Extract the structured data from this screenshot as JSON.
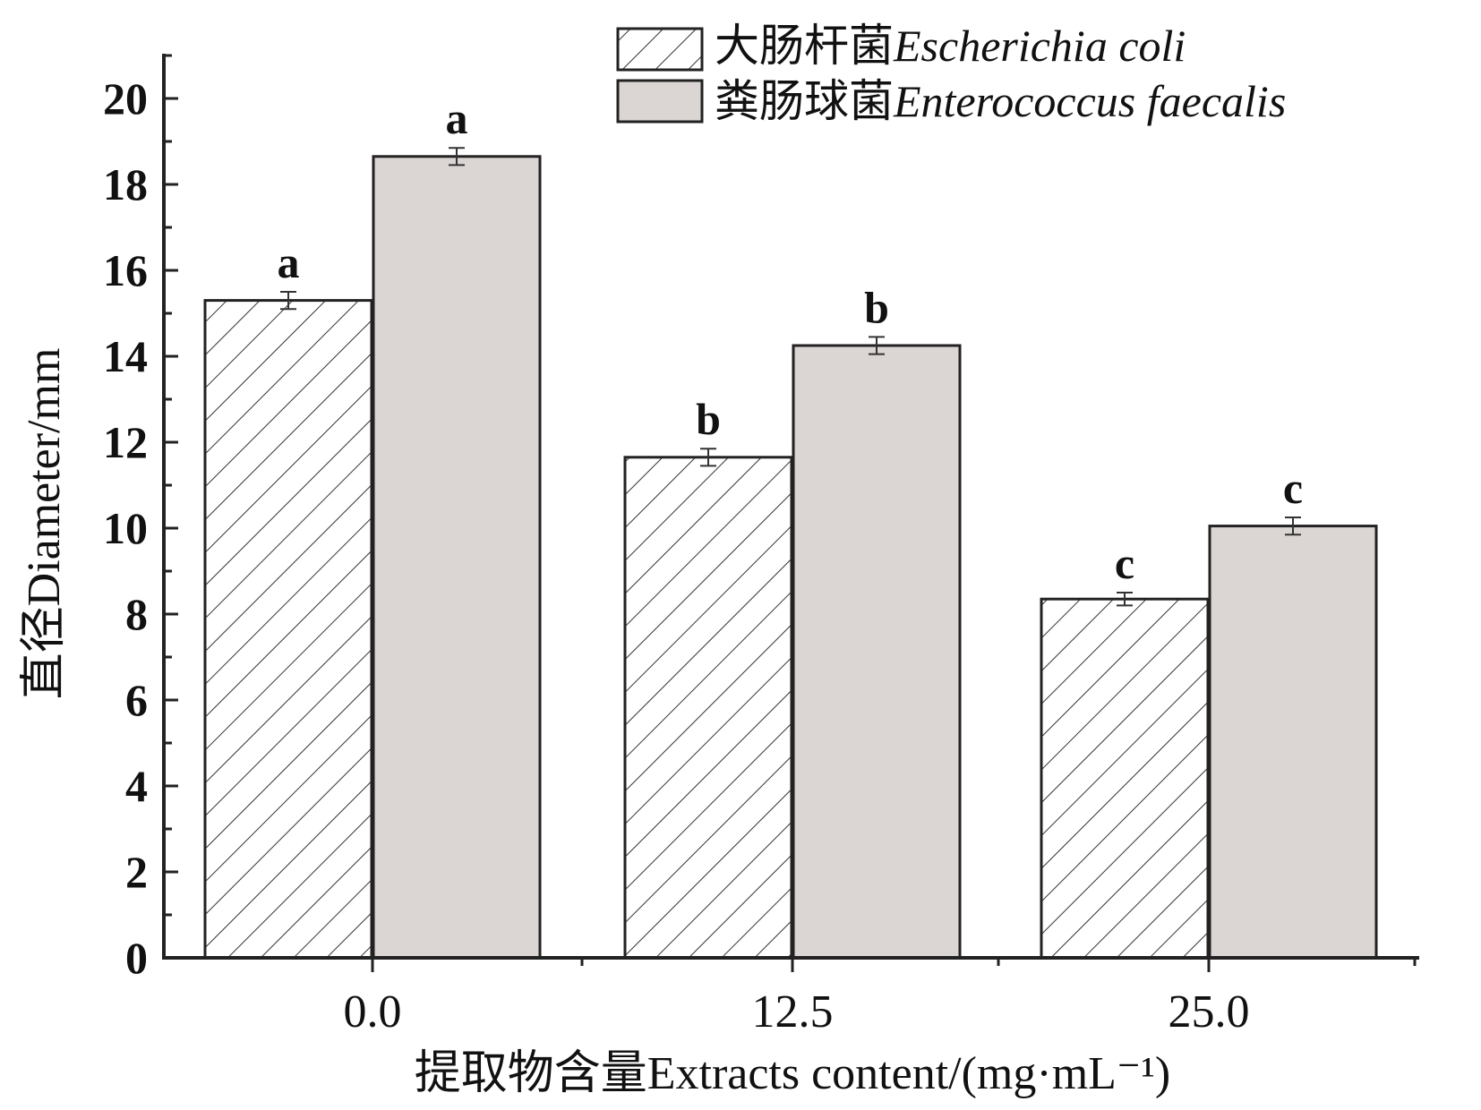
{
  "chart_data": {
    "type": "bar",
    "xlabel": "提取物含量Extracts content/(mg·mL⁻¹)",
    "ylabel": "直径Diameter/mm",
    "categories": [
      "0.0",
      "12.5",
      "25.0"
    ],
    "ylim": [
      0,
      21
    ],
    "yticks": [
      0,
      2,
      4,
      6,
      8,
      10,
      12,
      14,
      16,
      18,
      20
    ],
    "grid": false,
    "legend_position": "top-right",
    "series": [
      {
        "name": "大肠杆菌Escherichia coli",
        "name_cn": "大肠杆菌",
        "name_latin": "Escherichia coli",
        "fill": "hatched",
        "color": "#ffffff",
        "values": [
          15.3,
          11.65,
          8.35
        ],
        "errors": [
          0.2,
          0.2,
          0.15
        ],
        "labels": [
          "a",
          "b",
          "c"
        ]
      },
      {
        "name": "粪肠球菌Enterococcus faecalis",
        "name_cn": "粪肠球菌",
        "name_latin": "Enterococcus faecalis",
        "fill": "solid",
        "color": "#dbd5d3",
        "values": [
          18.65,
          14.25,
          10.05
        ],
        "errors": [
          0.2,
          0.2,
          0.2
        ],
        "labels": [
          "a",
          "b",
          "c"
        ]
      }
    ]
  }
}
